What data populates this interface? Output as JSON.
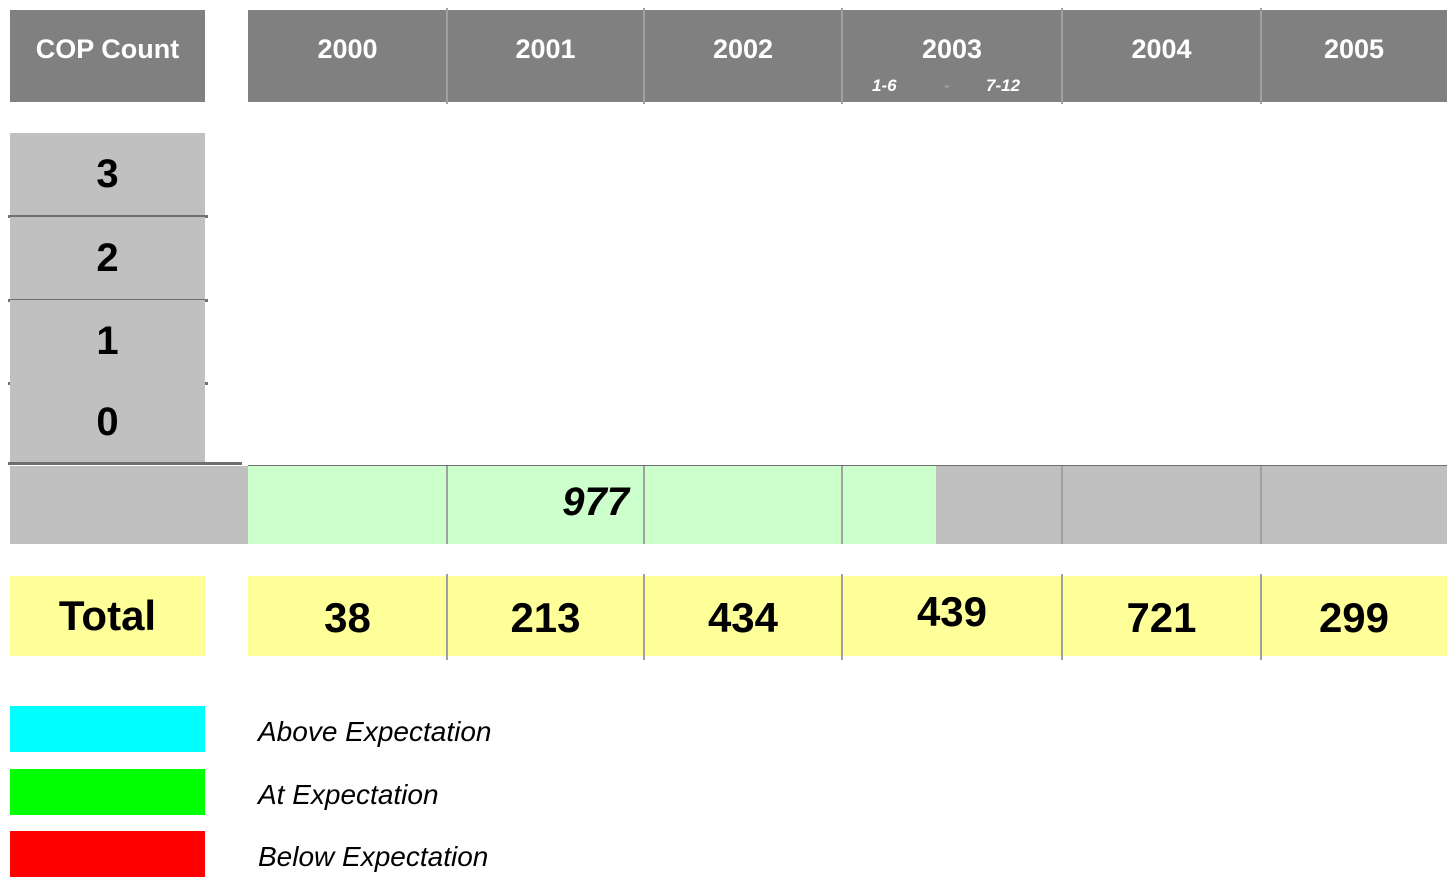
{
  "header": {
    "corner": "COP Count",
    "years": [
      "2000",
      "2001",
      "2002",
      "2003",
      "2004",
      "2005"
    ],
    "halves": [
      "1-6",
      "-",
      "7-12"
    ]
  },
  "rows": [
    "3",
    "2",
    "1",
    "0"
  ],
  "band": {
    "value": 977
  },
  "total": {
    "label": "Total",
    "values": [
      38,
      213,
      434,
      439,
      721,
      299
    ]
  },
  "legend": [
    {
      "label": "Above Expectation",
      "color": "#00ffff"
    },
    {
      "label": "At Expectation",
      "color": "#00ff00"
    },
    {
      "label": "Below Expectation",
      "color": "#ff0000"
    }
  ]
}
